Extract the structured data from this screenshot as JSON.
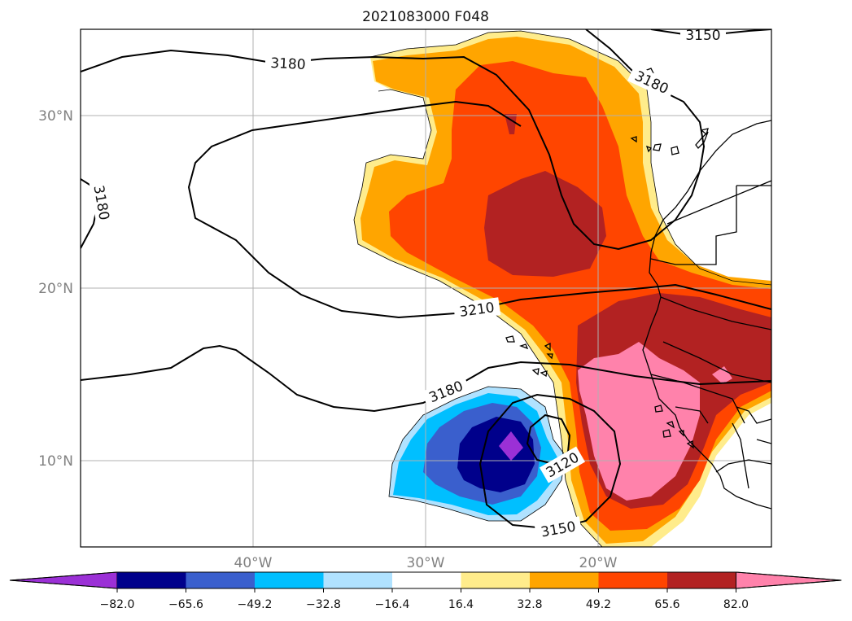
{
  "title": "2021083000 F048",
  "lat_labels": [
    "30°N",
    "20°N",
    "10°N"
  ],
  "lon_labels": [
    "40°W",
    "30°W",
    "20°W"
  ],
  "map_extent": {
    "lon": [
      -50,
      -10
    ],
    "lat": [
      5,
      35
    ]
  },
  "contour_labels": {
    "c3150_top": "3150",
    "c3180_top": "3180",
    "c3180_right": "3180",
    "c3180_left": "3180",
    "c3210": "3210",
    "c3180_bottom": "3180",
    "c3120": "3120",
    "c3150_bottom": "3150"
  },
  "colorbar": {
    "tick_labels": [
      "−82.0",
      "−65.6",
      "−49.2",
      "−32.8",
      "−16.4",
      "16.4",
      "32.8",
      "49.2",
      "65.6",
      "82.0"
    ],
    "colors": [
      "#9b30d6",
      "#00008b",
      "#3a5fcd",
      "#00bfff",
      "#b0e2ff",
      "#ffffff",
      "#ffec8b",
      "#ffa500",
      "#ff4500",
      "#b22222",
      "#ff82ab"
    ],
    "extend": "both"
  }
}
